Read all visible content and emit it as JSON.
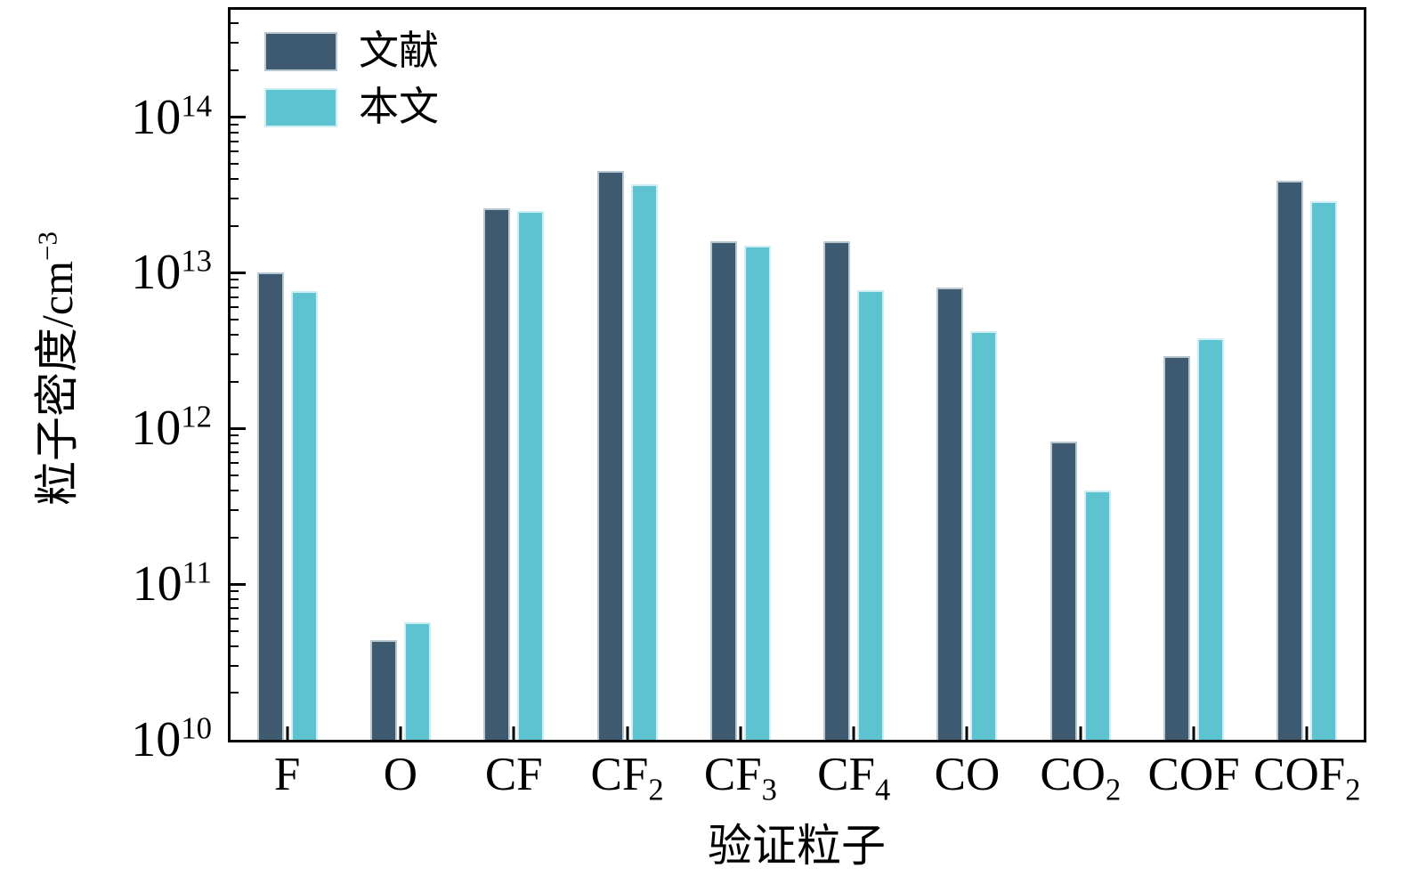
{
  "chart_data": {
    "type": "bar",
    "title": "",
    "xlabel": "验证粒子",
    "ylabel": {
      "pre": "粒子密度/cm",
      "sup": "−3"
    },
    "yscale": "log",
    "ylim": [
      10000000000.0,
      490000000000000.0
    ],
    "ylim_exp": [
      10,
      14.69
    ],
    "grid": false,
    "legend_position": "upper-left",
    "background": "#ffffff",
    "axis_color": "#000000",
    "categories": [
      {
        "base": "F",
        "sub": ""
      },
      {
        "base": "O",
        "sub": ""
      },
      {
        "base": "CF",
        "sub": ""
      },
      {
        "base": "CF",
        "sub": "2"
      },
      {
        "base": "CF",
        "sub": "3"
      },
      {
        "base": "CF",
        "sub": "4"
      },
      {
        "base": "CO",
        "sub": ""
      },
      {
        "base": "CO",
        "sub": "2"
      },
      {
        "base": "COF",
        "sub": ""
      },
      {
        "base": "COF",
        "sub": "2"
      }
    ],
    "y_ticks": [
      {
        "base": "10",
        "exp": "10"
      },
      {
        "base": "10",
        "exp": "11"
      },
      {
        "base": "10",
        "exp": "12"
      },
      {
        "base": "10",
        "exp": "13"
      },
      {
        "base": "10",
        "exp": "14"
      }
    ],
    "series": [
      {
        "key": "literature",
        "name": "文献",
        "fill": "#3E5A70",
        "edge": "#b9c7d1",
        "values": [
          10000000000000.0,
          44000000000.0,
          26000000000000.0,
          45000000000000.0,
          16000000000000.0,
          16000000000000.0,
          8000000000000.0,
          820000000000.0,
          2900000000000.0,
          39000000000000.0
        ]
      },
      {
        "key": "this-work",
        "name": "本文",
        "fill": "#5DC3D1",
        "edge": "#cdeef3",
        "values": [
          7600000000000.0,
          57000000000.0,
          25000000000000.0,
          37000000000000.0,
          15000000000000.0,
          7700000000000.0,
          4200000000000.0,
          400000000000.0,
          3800000000000.0,
          29000000000000.0
        ]
      }
    ]
  }
}
